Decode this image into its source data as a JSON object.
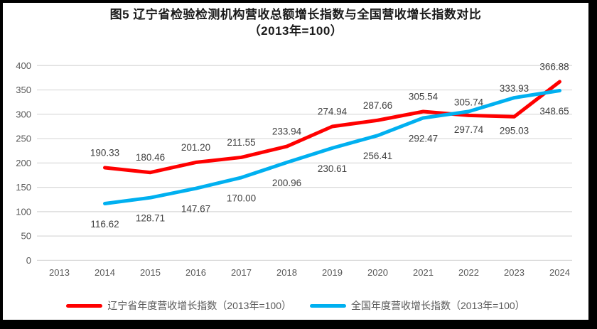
{
  "chart_data": {
    "type": "line",
    "title": "图5  辽宁省检验检测机构营收总额增长指数与全国营收增长指数对比",
    "subtitle": "（2013年=100）",
    "categories": [
      "2013",
      "2014",
      "2015",
      "2016",
      "2017",
      "2018",
      "2019",
      "2020",
      "2021",
      "2022",
      "2023",
      "2024"
    ],
    "start_index": 1,
    "series": [
      {
        "name": "辽宁省年度营收增长指数（2013年=100）",
        "color": "#FF0000",
        "values": [
          190.33,
          180.46,
          201.2,
          211.55,
          233.94,
          274.94,
          287.66,
          305.54,
          297.74,
          295.03,
          366.88
        ],
        "label_side": [
          "above",
          "above",
          "above",
          "above",
          "above",
          "above",
          "above",
          "above",
          "below",
          "below",
          "above"
        ]
      },
      {
        "name": "全国年度营收增长指数（2013年=100）",
        "color": "#00B0F0",
        "values": [
          116.62,
          128.71,
          147.67,
          170.0,
          200.96,
          230.61,
          256.41,
          292.47,
          305.74,
          333.93,
          348.65
        ],
        "label_side": [
          "below",
          "below",
          "below",
          "below",
          "below",
          "below",
          "below",
          "below",
          "above",
          "above",
          "below"
        ]
      }
    ],
    "ylim": [
      0,
      400
    ],
    "ytick_step": 50,
    "grid": true,
    "legend_position": "bottom",
    "colors": {
      "gridline": "#D9D9D9",
      "axis_text": "#595959",
      "data_label_text": "#404040",
      "legend_text": "#595959",
      "border": "#000000",
      "background": "#FFFFFF"
    }
  }
}
